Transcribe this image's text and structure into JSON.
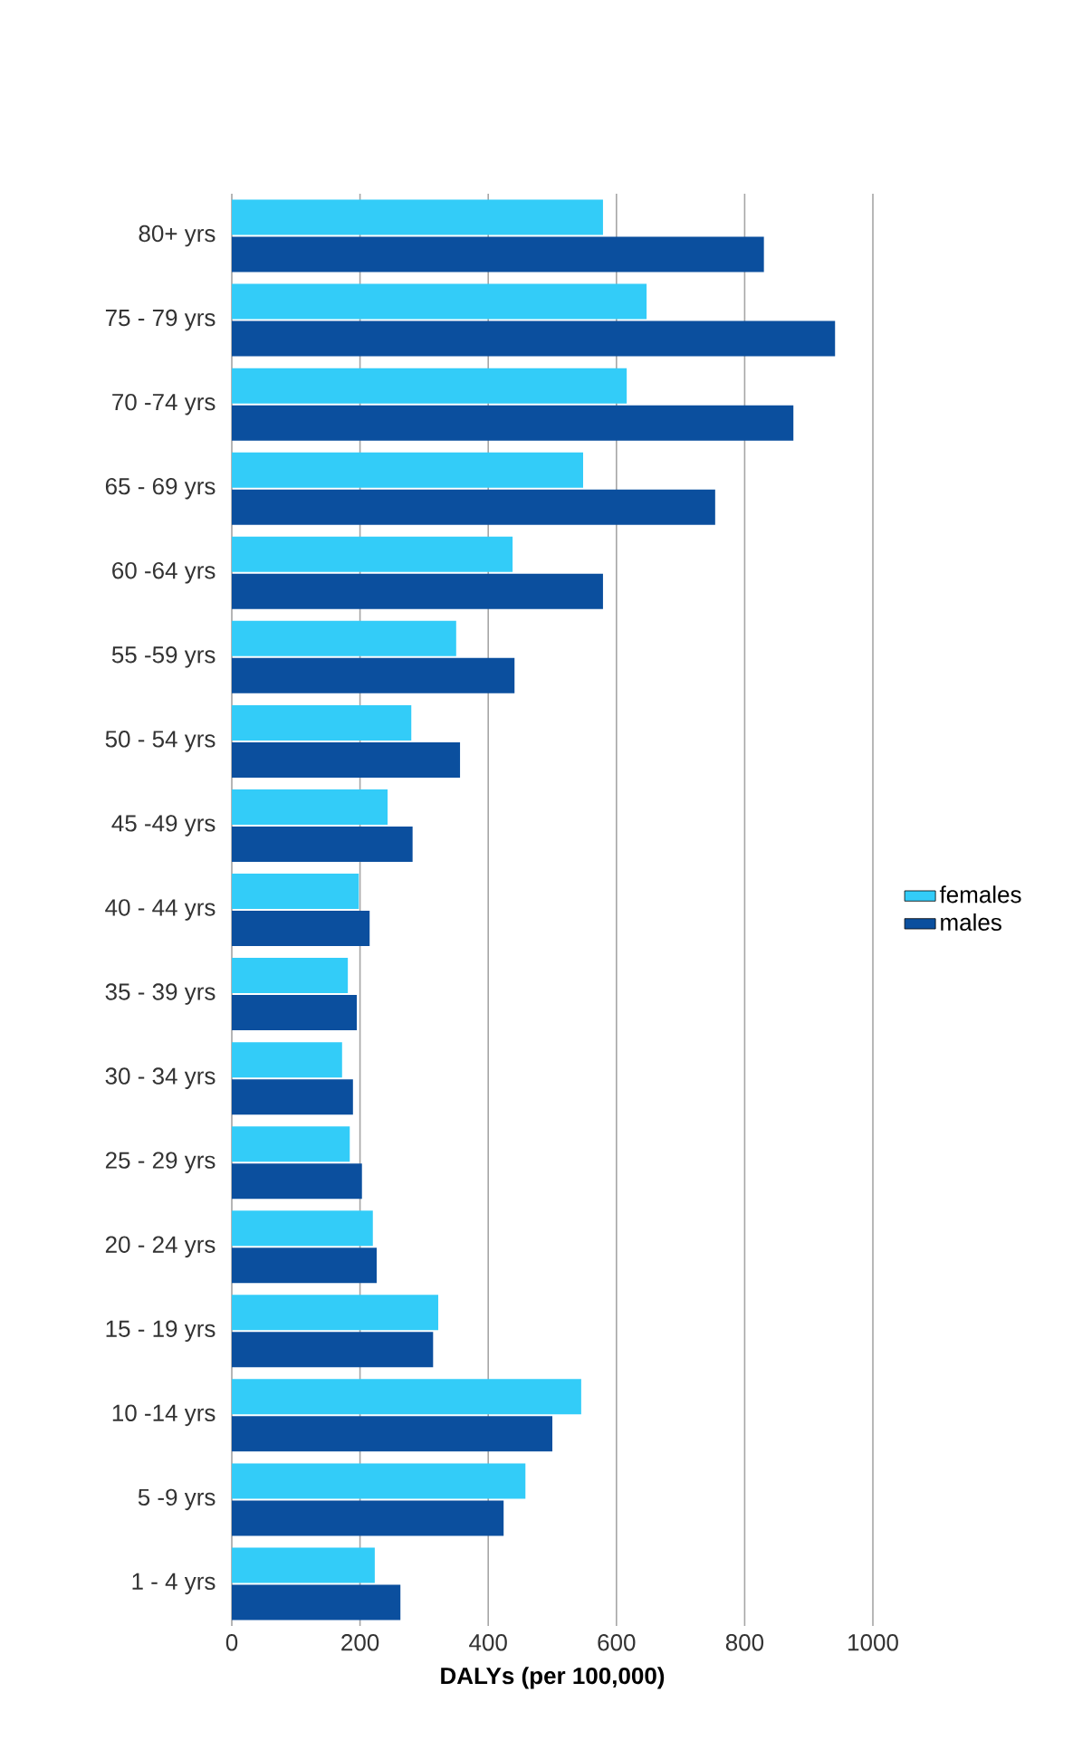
{
  "chart_data": {
    "type": "bar",
    "orientation": "horizontal",
    "xlabel": "DALYs (per 100,000)",
    "categories": [
      "80+ yrs",
      "75 - 79 yrs",
      "70 -74 yrs",
      "65 - 69 yrs",
      "60 -64 yrs",
      "55 -59 yrs",
      "50 - 54 yrs",
      "45 -49 yrs",
      "40 - 44 yrs",
      "35 - 39 yrs",
      "30 - 34 yrs",
      "25 - 29 yrs",
      "20 - 24 yrs",
      "15 - 19 yrs",
      "10 -14 yrs",
      "5 -9 yrs",
      "1 - 4 yrs"
    ],
    "series": [
      {
        "name": "females",
        "color": "#33ccf8",
        "values": [
          579,
          647,
          616,
          548,
          438,
          350,
          280,
          243,
          198,
          181,
          172,
          184,
          220,
          322,
          545,
          458,
          223
        ]
      },
      {
        "name": "males",
        "color": "#0b4f9e",
        "values": [
          830,
          941,
          876,
          754,
          579,
          441,
          356,
          282,
          215,
          195,
          189,
          203,
          226,
          314,
          500,
          424,
          263
        ]
      }
    ],
    "xlim": [
      0,
      1000
    ],
    "xticks": [
      0,
      200,
      400,
      600,
      800,
      1000
    ],
    "grid": "x",
    "legend": "right"
  }
}
